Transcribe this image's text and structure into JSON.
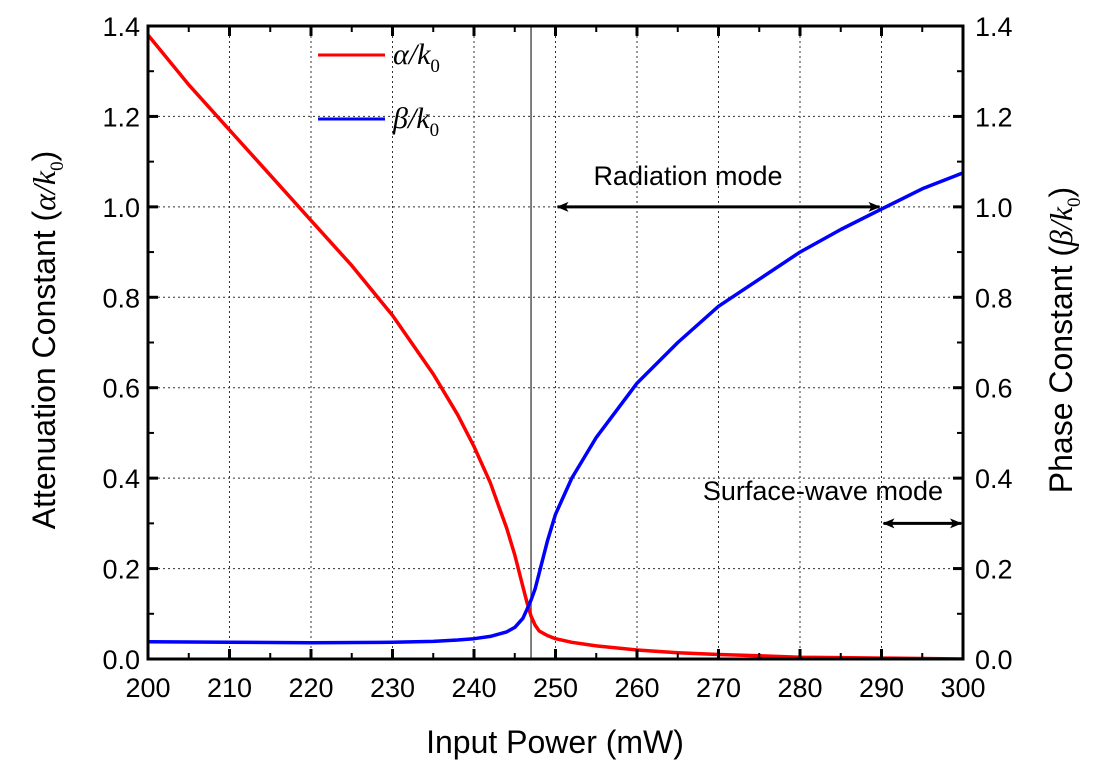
{
  "chart_data": {
    "type": "line",
    "xlabel": "Input Power (mW)",
    "ylabel_left": {
      "prefix": "Attenuation Constant (",
      "sym": "α/k",
      "sub": "0",
      "suffix": ")"
    },
    "ylabel_right": {
      "prefix": "Phase Constant (",
      "sym": "β/k",
      "sub": "0",
      "suffix": ")"
    },
    "xlim": [
      200,
      300
    ],
    "ylim": [
      0,
      1.4
    ],
    "x_ticks": [
      200,
      210,
      220,
      230,
      240,
      250,
      260,
      270,
      280,
      290,
      300
    ],
    "y_ticks": [
      0.0,
      0.2,
      0.4,
      0.6,
      0.8,
      1.0,
      1.2,
      1.4
    ],
    "x_tick_labels": [
      "200",
      "210",
      "220",
      "230",
      "240",
      "250",
      "260",
      "270",
      "280",
      "290",
      "300"
    ],
    "y_tick_labels": [
      "0.0",
      "0.2",
      "0.4",
      "0.6",
      "0.8",
      "1.0",
      "1.2",
      "1.4"
    ],
    "grid": true,
    "legend_position": "top-center",
    "series": [
      {
        "legend": {
          "sym": "α/k",
          "sub": "0"
        },
        "color": "#ff0000",
        "x": [
          200,
          205,
          210,
          215,
          220,
          225,
          230,
          235,
          238,
          240,
          242,
          243,
          244,
          245,
          246,
          246.5,
          247,
          247.5,
          248,
          249,
          250,
          252,
          255,
          260,
          265,
          270,
          275,
          280,
          285,
          290,
          295,
          300
        ],
        "y": [
          1.38,
          1.27,
          1.17,
          1.07,
          0.97,
          0.87,
          0.76,
          0.63,
          0.54,
          0.47,
          0.39,
          0.34,
          0.29,
          0.23,
          0.16,
          0.125,
          0.095,
          0.075,
          0.062,
          0.052,
          0.045,
          0.037,
          0.029,
          0.02,
          0.014,
          0.01,
          0.007,
          0.004,
          0.003,
          0.002,
          0.001,
          0.0
        ]
      },
      {
        "legend": {
          "sym": "β/k",
          "sub": "0"
        },
        "color": "#0000ff",
        "x": [
          200,
          210,
          220,
          230,
          235,
          238,
          240,
          242,
          244,
          245,
          246,
          246.5,
          247,
          247.5,
          248,
          249,
          250,
          252,
          255,
          260,
          265,
          270,
          275,
          280,
          285,
          290,
          295,
          300
        ],
        "y": [
          0.038,
          0.037,
          0.036,
          0.037,
          0.039,
          0.042,
          0.045,
          0.05,
          0.06,
          0.07,
          0.09,
          0.11,
          0.13,
          0.155,
          0.19,
          0.26,
          0.32,
          0.4,
          0.49,
          0.61,
          0.7,
          0.78,
          0.84,
          0.9,
          0.95,
          0.995,
          1.04,
          1.075
        ]
      }
    ],
    "annotations": {
      "radiation_mode": {
        "text": "Radiation mode",
        "from_x": 250,
        "to_x": 290,
        "y": 1.0
      },
      "surface_wave_mode": {
        "text": "Surface-wave mode",
        "from_x": 290,
        "to_x": 300,
        "y": 0.3
      },
      "threshold_line_x": 247
    }
  }
}
